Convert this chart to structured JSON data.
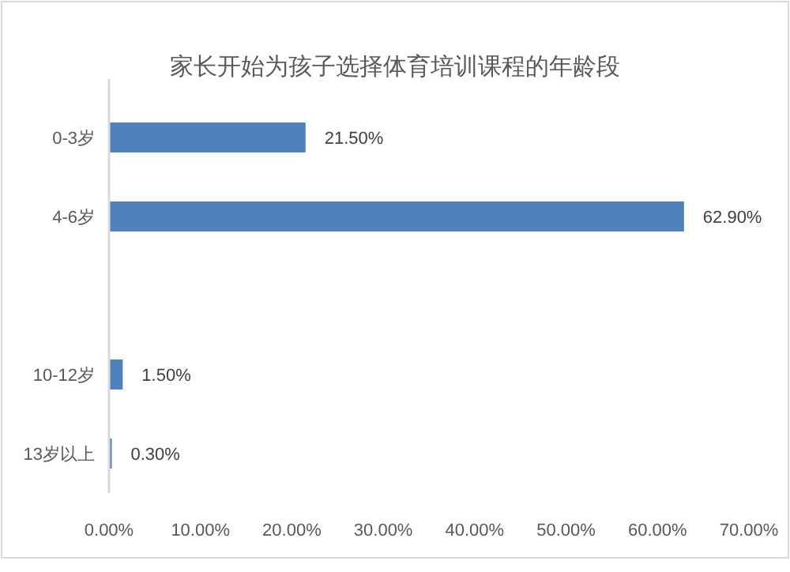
{
  "chart_data": {
    "type": "bar",
    "orientation": "horizontal",
    "title": "家长开始为孩子选择体育培训课程的年龄段",
    "categories": [
      "0-3岁",
      "4-6岁",
      null,
      "10-12岁",
      "13岁以上"
    ],
    "values": [
      21.5,
      62.9,
      null,
      1.5,
      0.3
    ],
    "value_labels": [
      "21.50%",
      "62.90%",
      null,
      "1.50%",
      "0.30%"
    ],
    "color": "#4f81bd",
    "xlim": [
      0,
      70
    ],
    "xticks": [
      {
        "value": 0,
        "label": "0.00%"
      },
      {
        "value": 10,
        "label": "10.00%"
      },
      {
        "value": 20,
        "label": "20.00%"
      },
      {
        "value": 30,
        "label": "30.00%"
      },
      {
        "value": 40,
        "label": "40.00%"
      },
      {
        "value": 50,
        "label": "50.00%"
      },
      {
        "value": 60,
        "label": "60.00%"
      },
      {
        "value": 70,
        "label": "70.00%"
      }
    ],
    "grid": false
  }
}
